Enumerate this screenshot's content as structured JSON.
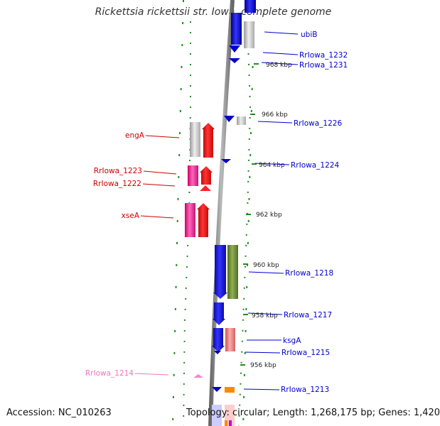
{
  "title": "Rickettsia rickettsii str. Iowa, complete genome",
  "footer": {
    "accession": "Accession: NC_010263",
    "summary": "Topology: circular; Length: 1,268,175 bp; Genes: 1,420"
  },
  "colors": {
    "forward_label": "#0000cc",
    "reverse_label": "#cc0000",
    "pseudo_label": "#ee77bb",
    "ring": "#808080",
    "ticks": "#228b22"
  },
  "ticks": [
    "968 kbp",
    "966 kbp",
    "964 kbp",
    "962 kbp",
    "960 kbp",
    "958 kbp",
    "956 kbp"
  ],
  "labels": {
    "right": [
      "ubiB",
      "RrIowa_1232",
      "RrIowa_1231",
      "RrIowa_1226",
      "RrIowa_1224",
      "RrIowa_1218",
      "RrIowa_1217",
      "ksgA",
      "RrIowa_1215",
      "RrIowa_1213"
    ],
    "left": [
      "engA",
      "RrIowa_1223",
      "RrIowa_1222",
      "xseA",
      "RrIowa_1214"
    ]
  }
}
